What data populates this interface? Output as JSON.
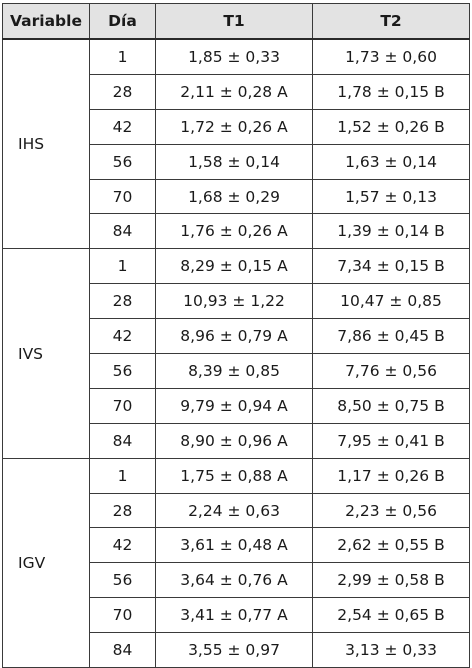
{
  "headers": {
    "variable": "Variable",
    "dia": "Día",
    "t1": "T1",
    "t2": "T2"
  },
  "groups": [
    {
      "variable": "IHS",
      "rows": [
        {
          "dia": "1",
          "t1": "1,85 ± 0,33",
          "t2": "1,73 ± 0,60"
        },
        {
          "dia": "28",
          "t1": "2,11 ± 0,28 A",
          "t2": "1,78 ± 0,15 B"
        },
        {
          "dia": "42",
          "t1": "1,72 ± 0,26 A",
          "t2": "1,52 ± 0,26 B"
        },
        {
          "dia": "56",
          "t1": "1,58 ± 0,14",
          "t2": "1,63 ± 0,14"
        },
        {
          "dia": "70",
          "t1": "1,68 ± 0,29",
          "t2": "1,57 ± 0,13"
        },
        {
          "dia": "84",
          "t1": "1,76 ± 0,26 A",
          "t2": "1,39 ± 0,14 B"
        }
      ]
    },
    {
      "variable": "IVS",
      "rows": [
        {
          "dia": "1",
          "t1": "8,29 ± 0,15 A",
          "t2": "7,34 ± 0,15 B"
        },
        {
          "dia": "28",
          "t1": "10,93 ± 1,22",
          "t2": "10,47 ± 0,85"
        },
        {
          "dia": "42",
          "t1": "8,96 ± 0,79 A",
          "t2": "7,86 ± 0,45 B"
        },
        {
          "dia": "56",
          "t1": "8,39 ± 0,85",
          "t2": "7,76 ± 0,56"
        },
        {
          "dia": "70",
          "t1": "9,79 ± 0,94 A",
          "t2": "8,50 ± 0,75 B"
        },
        {
          "dia": "84",
          "t1": "8,90 ± 0,96 A",
          "t2": "7,95 ± 0,41 B"
        }
      ]
    },
    {
      "variable": "IGV",
      "rows": [
        {
          "dia": "1",
          "t1": "1,75 ± 0,88 A",
          "t2": "1,17 ± 0,26 B"
        },
        {
          "dia": "28",
          "t1": "2,24 ± 0,63",
          "t2": "2,23 ± 0,56"
        },
        {
          "dia": "42",
          "t1": "3,61 ± 0,48 A",
          "t2": "2,62 ± 0,55 B"
        },
        {
          "dia": "56",
          "t1": "3,64 ± 0,76 A",
          "t2": "2,99 ± 0,58 B"
        },
        {
          "dia": "70",
          "t1": "3,41 ± 0,77 A",
          "t2": "2,54 ± 0,65 B"
        },
        {
          "dia": "84",
          "t1": "3,55 ± 0,97",
          "t2": "3,13 ± 0,33"
        }
      ]
    }
  ]
}
